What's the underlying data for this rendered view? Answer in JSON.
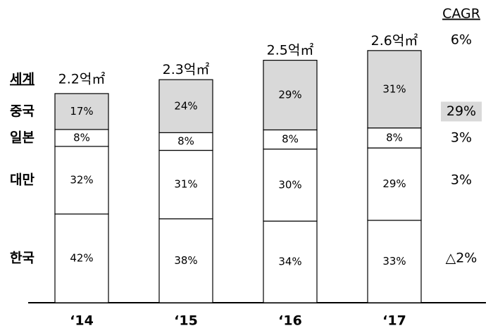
{
  "chart_data": {
    "type": "bar",
    "stacked": true,
    "categories": [
      "‘14",
      "‘15",
      "‘16",
      "‘17"
    ],
    "series": [
      {
        "name": "한국",
        "color": "#ffffff",
        "values": [
          42,
          38,
          34,
          33
        ],
        "value_labels": [
          "42%",
          "38%",
          "34%",
          "33%"
        ],
        "cagr": "△2%"
      },
      {
        "name": "대만",
        "color": "#ffffff",
        "values": [
          32,
          31,
          30,
          29
        ],
        "value_labels": [
          "32%",
          "31%",
          "30%",
          "29%"
        ],
        "cagr": "3%"
      },
      {
        "name": "일본",
        "color": "#ffffff",
        "values": [
          8,
          8,
          8,
          8
        ],
        "value_labels": [
          "8%",
          "8%",
          "8%",
          "8%"
        ],
        "cagr": "3%"
      },
      {
        "name": "중국",
        "color": "#d9d9d9",
        "values": [
          17,
          24,
          29,
          31
        ],
        "value_labels": [
          "17%",
          "24%",
          "29%",
          "31%"
        ],
        "cagr": "29%"
      }
    ],
    "totals": {
      "name": "세계",
      "values": [
        2.2,
        2.3,
        2.5,
        2.6
      ],
      "value_labels": [
        "2.2억㎡",
        "2.3억㎡",
        "2.5억㎡",
        "2.6억㎡"
      ],
      "cagr": "6%"
    },
    "cagr_title": "CAGR"
  }
}
